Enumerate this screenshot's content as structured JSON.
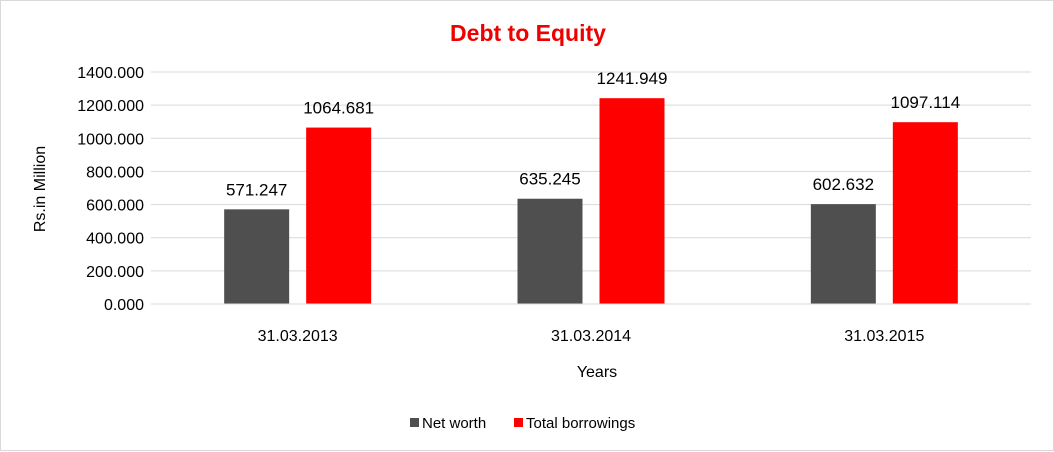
{
  "chart_data": {
    "type": "bar",
    "title": "Debt to Equity",
    "title_color": "#ee0000",
    "xlabel": "Years",
    "ylabel": "Rs.in Million",
    "categories": [
      "31.03.2013",
      "31.03.2014",
      "31.03.2015"
    ],
    "series": [
      {
        "name": "Net worth",
        "color": "#4f4f4f",
        "values": [
          571.247,
          635.245,
          602.632
        ],
        "labels": [
          "571.247",
          "635.245",
          "602.632"
        ]
      },
      {
        "name": "Total borrowings",
        "color": "#ff0000",
        "values": [
          1064.681,
          1241.949,
          1097.114
        ],
        "labels": [
          "1064.681",
          "1241.949",
          "1097.114"
        ]
      }
    ],
    "ylim": [
      0,
      1400
    ],
    "yticks": [
      "0.000",
      "200.000",
      "400.000",
      "600.000",
      "800.000",
      "1000.000",
      "1200.000",
      "1400.000"
    ],
    "grid": true,
    "legend_position": "bottom"
  }
}
